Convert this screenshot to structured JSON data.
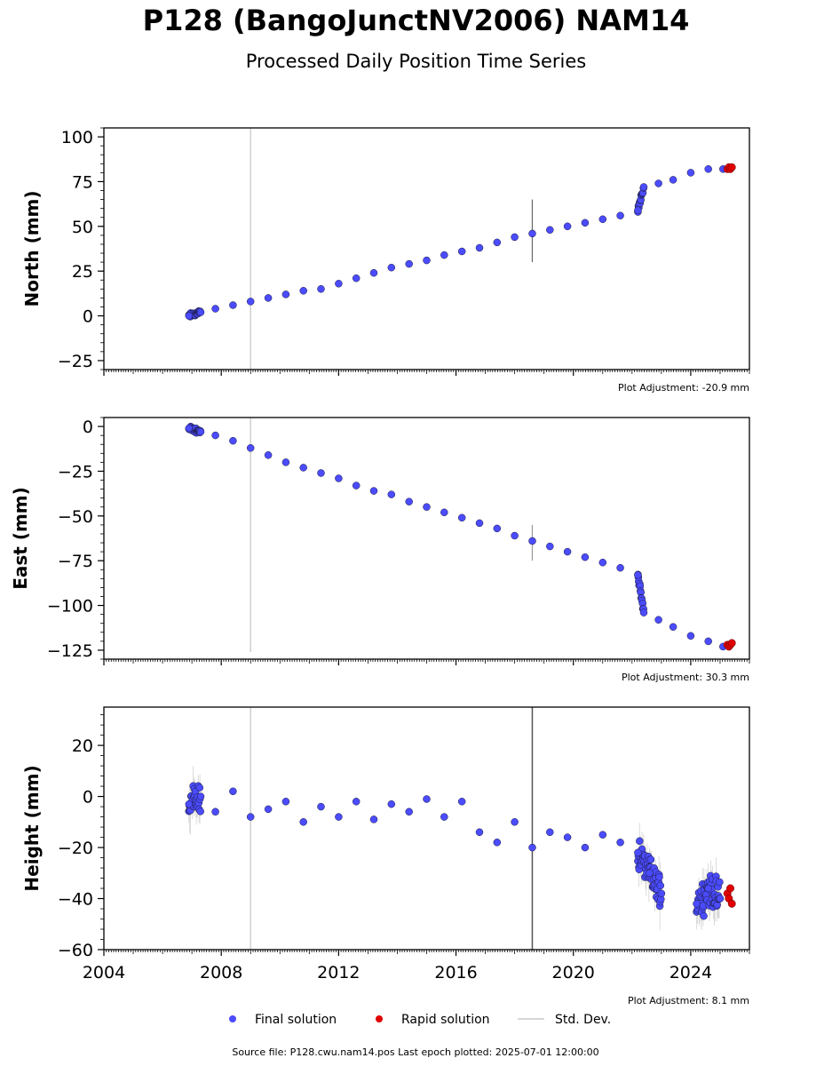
{
  "header": {
    "title": "P128 (BangoJunctNV2006) NAM14",
    "subtitle": "Processed Daily Position Time Series"
  },
  "footer": {
    "source": "Source file: P128.cwu.nam14.pos  Last epoch plotted: 2025-07-01 12:00:00"
  },
  "legend": {
    "final_label": "Final solution",
    "rapid_label": "Rapid solution",
    "std_label": "Std. Dev."
  },
  "colors": {
    "final": "#4b4bff",
    "rapid": "#e00000",
    "std": "#b0b0b0",
    "edge": "#1a1a3a"
  },
  "chart_data": [
    {
      "type": "scatter",
      "ylabel": "North (mm)",
      "adjustment": "Plot Adjustment: -20.9 mm",
      "xlim": [
        2004,
        2026
      ],
      "ylim": [
        -30,
        105
      ],
      "yticks": [
        -25,
        0,
        25,
        50,
        75,
        100
      ],
      "xticks": [
        2004,
        2008,
        2012,
        2016,
        2020,
        2024
      ],
      "show_xtick_labels": false,
      "series": [
        {
          "name": "Final solution",
          "x": [
            2006.9,
            2007.3,
            2007.8,
            2008.4,
            2009.0,
            2009.6,
            2010.2,
            2010.8,
            2011.4,
            2012.0,
            2012.6,
            2013.2,
            2013.8,
            2014.4,
            2015.0,
            2015.6,
            2016.2,
            2016.8,
            2017.4,
            2018.0,
            2018.6,
            2019.2,
            2019.8,
            2020.4,
            2021.0,
            2021.6,
            2022.2,
            2022.4,
            2022.9,
            2023.4,
            2024.0,
            2024.6,
            2025.1
          ],
          "y": [
            0,
            2,
            4,
            6,
            8,
            10,
            12,
            14,
            15,
            18,
            21,
            24,
            27,
            29,
            31,
            34,
            36,
            38,
            41,
            44,
            46,
            48,
            50,
            52,
            54,
            56,
            59,
            72,
            74,
            76,
            80,
            82,
            82
          ]
        },
        {
          "name": "Rapid solution",
          "x": [
            2025.25,
            2025.3,
            2025.35,
            2025.4
          ],
          "y": [
            82,
            83,
            82,
            83
          ]
        }
      ]
    },
    {
      "type": "scatter",
      "ylabel": "East (mm)",
      "adjustment": "Plot Adjustment: 30.3 mm",
      "xlim": [
        2004,
        2026
      ],
      "ylim": [
        -130,
        5
      ],
      "yticks": [
        -125,
        -100,
        -75,
        -50,
        -25,
        0
      ],
      "xticks": [
        2004,
        2008,
        2012,
        2016,
        2020,
        2024
      ],
      "show_xtick_labels": false,
      "series": [
        {
          "name": "Final solution",
          "x": [
            2006.9,
            2007.3,
            2007.8,
            2008.4,
            2009.0,
            2009.6,
            2010.2,
            2010.8,
            2011.4,
            2012.0,
            2012.6,
            2013.2,
            2013.8,
            2014.4,
            2015.0,
            2015.6,
            2016.2,
            2016.8,
            2017.4,
            2018.0,
            2018.6,
            2019.2,
            2019.8,
            2020.4,
            2021.0,
            2021.6,
            2022.2,
            2022.4,
            2022.9,
            2023.4,
            2024.0,
            2024.6,
            2025.1
          ],
          "y": [
            -1,
            -3,
            -5,
            -8,
            -12,
            -16,
            -20,
            -23,
            -26,
            -29,
            -33,
            -36,
            -38,
            -42,
            -45,
            -48,
            -51,
            -54,
            -57,
            -61,
            -64,
            -67,
            -70,
            -73,
            -76,
            -79,
            -83,
            -104,
            -108,
            -112,
            -117,
            -120,
            -123
          ]
        },
        {
          "name": "Rapid solution",
          "x": [
            2025.25,
            2025.3,
            2025.35,
            2025.4
          ],
          "y": [
            -122,
            -123,
            -122,
            -121
          ]
        }
      ]
    },
    {
      "type": "scatter",
      "ylabel": "Height (mm)",
      "adjustment": "Plot Adjustment: 8.1 mm",
      "xlim": [
        2004,
        2026
      ],
      "ylim": [
        -60,
        35
      ],
      "yticks": [
        -60,
        -40,
        -20,
        0,
        20
      ],
      "xticks": [
        2004,
        2008,
        2012,
        2016,
        2020,
        2024
      ],
      "show_xtick_labels": true,
      "series": [
        {
          "name": "Final solution",
          "x": [
            2006.9,
            2007.3,
            2007.8,
            2008.4,
            2009.0,
            2009.6,
            2010.2,
            2010.8,
            2011.4,
            2012.0,
            2012.6,
            2013.2,
            2013.8,
            2014.4,
            2015.0,
            2015.6,
            2016.2,
            2016.8,
            2017.4,
            2018.0,
            2018.6,
            2019.2,
            2019.8,
            2020.4,
            2021.0,
            2021.6,
            2022.2,
            2022.6,
            2023.0,
            2024.2,
            2024.6,
            2025.0
          ],
          "y": [
            -3,
            0,
            -6,
            2,
            -8,
            -5,
            -2,
            -10,
            -4,
            -8,
            -2,
            -9,
            -3,
            -6,
            -1,
            -8,
            -2,
            -14,
            -18,
            -10,
            -20,
            -14,
            -16,
            -20,
            -15,
            -18,
            -22,
            -30,
            -38,
            -42,
            -36,
            -40
          ]
        },
        {
          "name": "Rapid solution",
          "x": [
            2025.25,
            2025.3,
            2025.35,
            2025.4
          ],
          "y": [
            -38,
            -40,
            -36,
            -42
          ]
        }
      ]
    }
  ]
}
